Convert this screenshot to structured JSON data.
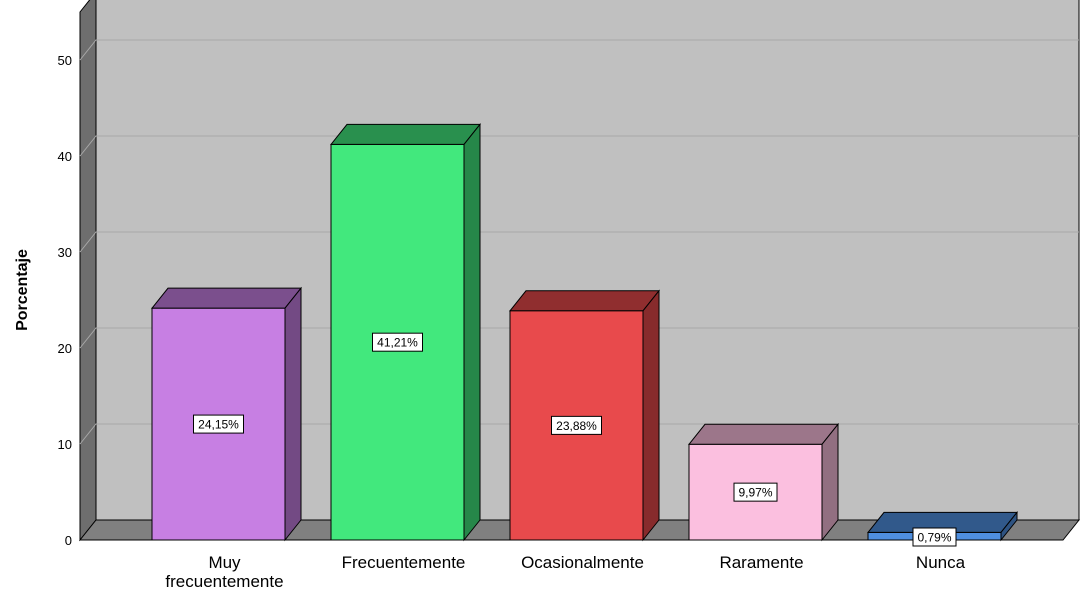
{
  "chart_data": {
    "type": "bar",
    "three_d": true,
    "title": "",
    "xlabel": "",
    "ylabel": "Porcentaje",
    "ylim": [
      0,
      55
    ],
    "yticks": [
      0,
      10,
      20,
      30,
      40,
      50
    ],
    "ytick_labels": [
      "0",
      "10",
      "20",
      "30",
      "40",
      "50"
    ],
    "grid": true,
    "legend": "none",
    "categories": [
      "Muy frecuentemente",
      "Frecuentemente",
      "Ocasionalmente",
      "Raramente",
      "Nunca"
    ],
    "category_lines": [
      [
        "Muy",
        "frecuentemente"
      ],
      [
        "Frecuentemente"
      ],
      [
        "Ocasionalmente"
      ],
      [
        "Raramente"
      ],
      [
        "Nunca"
      ]
    ],
    "values": [
      24.15,
      41.21,
      23.88,
      9.97,
      0.79
    ],
    "data_labels": [
      "24,15%",
      "41,21%",
      "23,88%",
      "9,97%",
      "0,79%"
    ],
    "colors": [
      "#C77FE3",
      "#42E87D",
      "#E84A4C",
      "#FBBFDF",
      "#4F8FE0"
    ],
    "plot_background": "#C0C0C0",
    "floor_color": "#808080",
    "wall_color": "#6E6E6E"
  }
}
